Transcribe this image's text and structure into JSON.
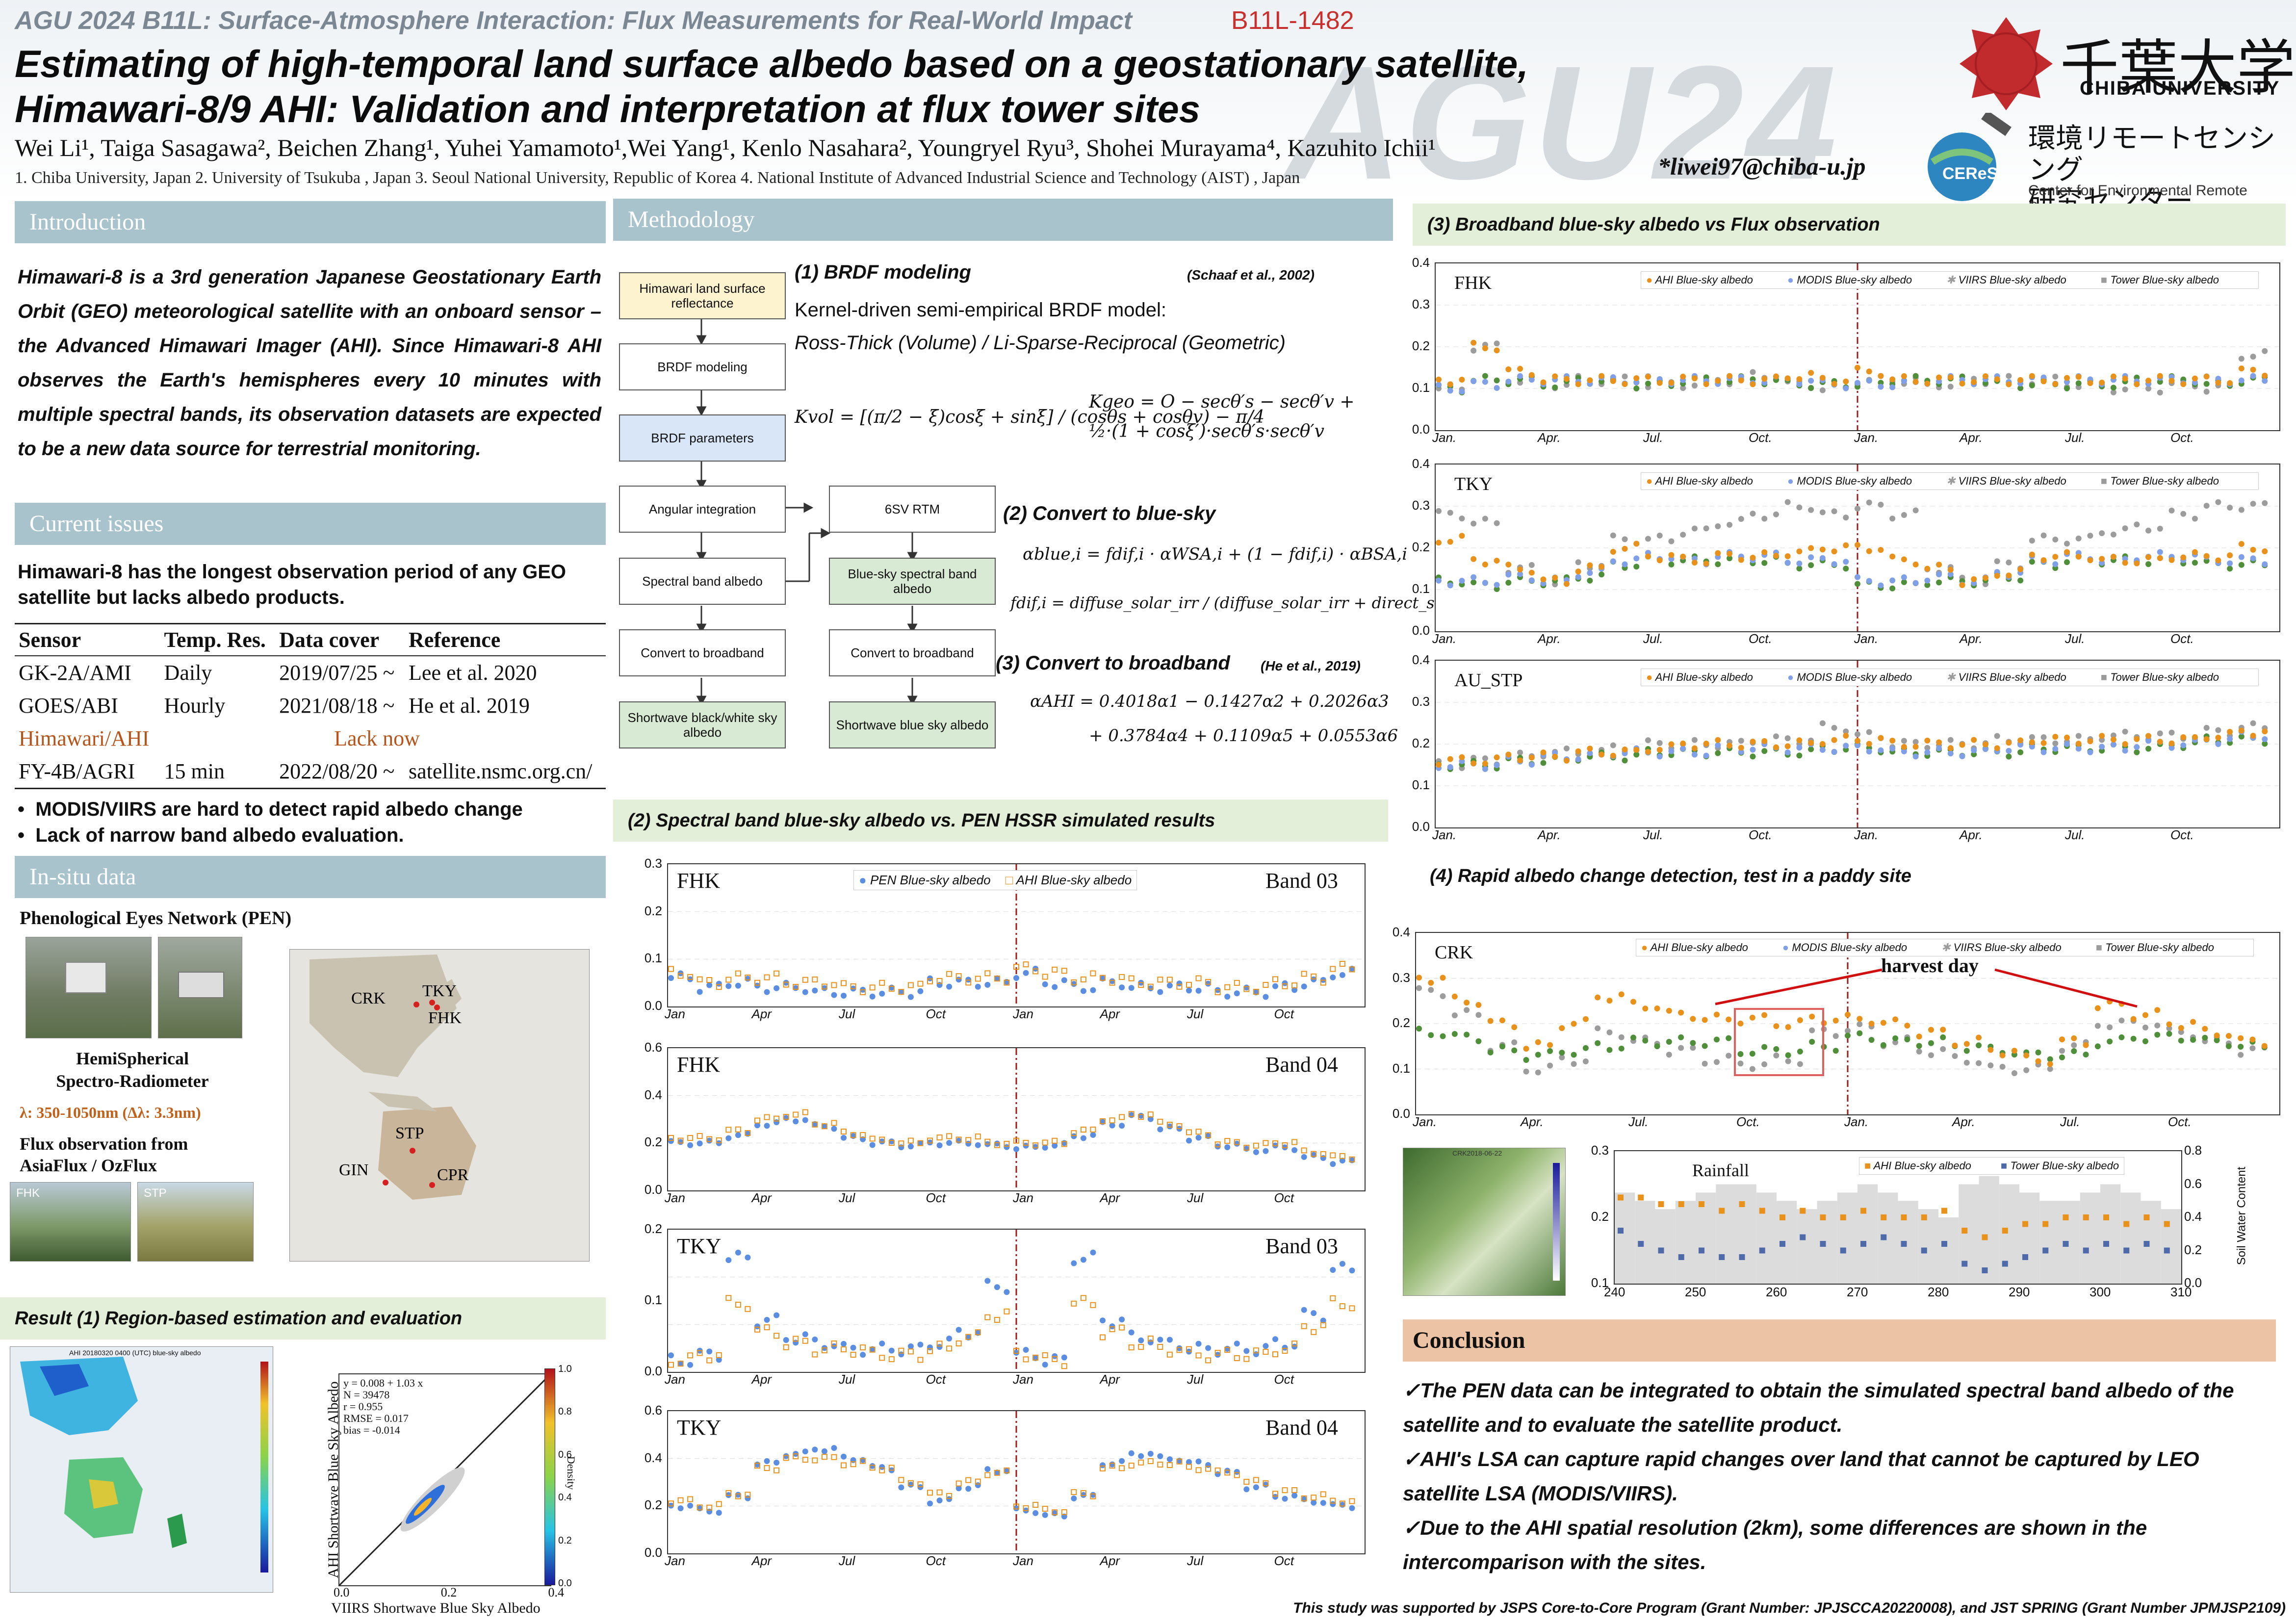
{
  "header": {
    "conference": "AGU 2024 B11L: Surface-Atmosphere Interaction: Flux Measurements for Real-World Impact",
    "poster_code": "B11L-1482",
    "watermark": "AGU24",
    "title_line1": "Estimating of high-temporal land surface albedo based on a geostationary satellite,",
    "title_line2": "Himawari-8/9 AHI: Validation and interpretation at flux tower sites",
    "authors": "Wei Li¹, Taiga Sasagawa², Beichen Zhang¹, Yuhei Yamamoto¹,Wei Yang¹, Kenlo Nasahara², Youngryel Ryu³, Shohei Murayama⁴, Kazuhito Ichii¹",
    "affiliations": "1. Chiba University, Japan  2. University of Tsukuba , Japan 3. Seoul National University, Republic of Korea 4. National Institute of Advanced Industrial Science and Technology (AIST) , Japan",
    "email": "*liwei97@chiba-u.jp",
    "logo_jp": "千葉大学",
    "logo_en": "CHIBA UNIVERSITY",
    "ceres_badge": "CEReS",
    "ceres_jp1": "環境リモートセンシング",
    "ceres_jp2": "研究センター",
    "ceres_en": "Center for Environmental Remote Sensing"
  },
  "intro": {
    "heading": "Introduction",
    "text": "Himawari-8 is a 3rd generation Japanese Geostationary Earth Orbit (GEO) meteorological satellite with an onboard sensor – the Advanced Himawari Imager (AHI). Since Himawari-8 AHI observes the Earth's hemispheres every 10 minutes with multiple spectral bands, its observation datasets are expected to be a new data source for terrestrial monitoring."
  },
  "issues": {
    "heading": "Current issues",
    "text": "Himawari-8 has the longest observation period of any GEO satellite but lacks albedo products.",
    "table_headers": [
      "Sensor",
      "Temp. Res.",
      "Data cover",
      "Reference"
    ],
    "rows": [
      [
        "GK-2A/AMI",
        "Daily",
        "2019/07/25 ~",
        "Lee et al. 2020"
      ],
      [
        "GOES/ABI",
        "Hourly",
        "2021/08/18 ~",
        "He et al. 2019"
      ],
      [
        "FY-4B/AGRI",
        "15 min",
        "2022/08/20 ~",
        "satellite.nsmc.org.cn/"
      ]
    ],
    "himawari_sensor": "Himawari/AHI",
    "himawari_note": "Lack now",
    "bullet1": "MODIS/VIIRS are hard to detect rapid albedo change",
    "bullet2": "Lack of narrow band albedo evaluation."
  },
  "insitu": {
    "heading": "In-situ data",
    "pen_title": "Phenological Eyes Network (PEN)",
    "hssr1": "HemiSpherical",
    "hssr2": "Spectro-Radiometer",
    "lambda": "λ: 350-1050nm (Δλ: 3.3nm)",
    "flux1": "Flux observation from",
    "flux2": "AsiaFlux / OzFlux",
    "photo_fhk": "FHK",
    "photo_stp": "STP",
    "sites": [
      "CRK",
      "TKY",
      "FHK",
      "STP",
      "GIN",
      "CPR"
    ]
  },
  "result1": {
    "heading": "Result (1) Region-based estimation and evaluation",
    "map_title": "AHI 20180320 0400 (UTC) blue-sky albedo",
    "stats": [
      "y = 0.008 + 1.03 x",
      "N = 39478",
      "r = 0.955",
      "RMSE = 0.017",
      "bias = -0.014"
    ],
    "xlabel": "VIIRS Shortwave Blue Sky Albedo",
    "ylabel": "AHI Shortwave Blue Sky Albedo",
    "density": "Density",
    "xticks": [
      "0.0",
      "0.2",
      "0.4"
    ],
    "cb_ticks": [
      "1.0",
      "0.8",
      "0.6",
      "0.4",
      "0.2",
      "0.0"
    ]
  },
  "method": {
    "heading": "Methodology",
    "flow_left": [
      "Himawari land surface reflectance",
      "BRDF modeling",
      "BRDF parameters",
      "Angular integration",
      "Spectral band albedo",
      "Convert to broadband",
      "Shortwave black/white sky albedo"
    ],
    "flow_right": [
      "6SV RTM",
      "Blue-sky spectral band albedo",
      "Convert to broadband",
      "Shortwave blue sky albedo"
    ],
    "s1_title": "(1) BRDF modeling",
    "s1_ref": "(Schaaf et al., 2002)",
    "s1_line1": "Kernel-driven semi-empirical BRDF model:",
    "s1_line2": "Ross-Thick (Volume)  / Li-Sparse-Reciprocal (Geometric)",
    "kvol": "Kvol = [(π/2 − ξ)cosξ + sinξ] / (cosθs + cosθv) − π/4",
    "kgeo": "Kgeo = O − secθ′s − secθ′v + ½·(1 + cosξ′)·secθ′s·secθ′v",
    "s2_title": "(2) Convert to blue-sky",
    "eq_blue": "αblue,i = fdif,i · αWSA,i + (1 − fdif,i) · αBSA,i",
    "eq_fdif": "fdif,i = diffuse_solar_irr / (diffuse_solar_irr + direct_solar_irr)",
    "s3_title": "(3) Convert to broadband",
    "s3_ref": "(He et al., 2019)",
    "eq_ahi1": "αAHI = 0.4018α1 − 0.1427α2 + 0.2026α3",
    "eq_ahi2": "+ 0.3784α4 + 0.1109α5 + 0.0553α6"
  },
  "spectral": {
    "heading": "(2) Spectral band blue-sky albedo vs. PEN HSSR simulated results",
    "legend": [
      "PEN Blue-sky albedo",
      "AHI Blue-sky albedo"
    ],
    "months": [
      "Jan",
      "Apr",
      "Jul",
      "Oct",
      "Jan",
      "Apr",
      "Jul",
      "Oct"
    ],
    "panels": [
      {
        "site": "FHK",
        "band": "Band 03",
        "yticks": [
          "0.3",
          "0.2",
          "0.1",
          "0.0"
        ],
        "ymax": 0.3,
        "ahi": [
          0.07,
          0.05,
          0.06,
          0.06,
          0.05,
          0.05,
          0.04,
          0.04,
          0.04,
          0.06,
          0.06,
          0.06,
          0.08,
          0.07,
          0.06,
          0.06,
          0.05,
          0.05,
          0.05,
          0.04,
          0.04,
          0.05,
          0.06,
          0.08
        ],
        "pen": [
          0.06,
          0.04,
          0.05,
          0.04,
          0.04,
          0.03,
          0.03,
          0.03,
          0.03,
          0.05,
          0.05,
          0.05,
          0.07,
          0.05,
          0.04,
          0.05,
          0.04,
          0.04,
          0.04,
          0.03,
          0.03,
          0.04,
          0.05,
          0.07
        ]
      },
      {
        "site": "FHK",
        "band": "Band 04",
        "yticks": [
          "0.6",
          "0.4",
          "0.2",
          "0.0"
        ],
        "ymax": 0.6,
        "ahi": [
          0.22,
          0.22,
          0.25,
          0.3,
          0.32,
          0.28,
          0.24,
          0.21,
          0.2,
          0.22,
          0.22,
          0.2,
          0.2,
          0.2,
          0.25,
          0.3,
          0.32,
          0.28,
          0.24,
          0.2,
          0.19,
          0.2,
          0.16,
          0.14
        ],
        "pen": [
          0.2,
          0.2,
          0.23,
          0.28,
          0.3,
          0.27,
          0.22,
          0.2,
          0.19,
          0.2,
          0.2,
          0.19,
          0.18,
          0.19,
          0.23,
          0.28,
          0.31,
          0.26,
          0.22,
          0.19,
          0.17,
          0.18,
          0.14,
          0.12
        ]
      },
      {
        "site": "TKY",
        "band": "Band 03",
        "yticks": [
          "0.2",
          "0.1",
          "0.0"
        ],
        "ymax": 0.25,
        "ahi": [
          0.02,
          0.03,
          0.12,
          0.07,
          0.05,
          0.04,
          0.04,
          0.03,
          0.03,
          0.04,
          0.06,
          0.1,
          0.03,
          0.02,
          0.12,
          0.07,
          0.05,
          0.04,
          0.03,
          0.03,
          0.03,
          0.04,
          0.08,
          0.12
        ],
        "pen": [
          0.02,
          0.03,
          0.2,
          0.09,
          0.06,
          0.05,
          0.04,
          0.04,
          0.04,
          0.05,
          0.07,
          0.15,
          0.03,
          0.02,
          0.2,
          0.09,
          0.06,
          0.05,
          0.04,
          0.04,
          0.04,
          0.05,
          0.1,
          0.18
        ]
      },
      {
        "site": "TKY",
        "band": "Band 04",
        "yticks": [
          "0.6",
          "0.4",
          "0.2",
          "0.0"
        ],
        "ymax": 0.6,
        "ahi": [
          0.22,
          0.2,
          0.25,
          0.36,
          0.4,
          0.4,
          0.38,
          0.36,
          0.3,
          0.25,
          0.3,
          0.34,
          0.2,
          0.18,
          0.25,
          0.36,
          0.38,
          0.38,
          0.36,
          0.34,
          0.3,
          0.26,
          0.24,
          0.22
        ],
        "pen": [
          0.2,
          0.18,
          0.24,
          0.38,
          0.42,
          0.44,
          0.4,
          0.36,
          0.28,
          0.22,
          0.28,
          0.35,
          0.18,
          0.16,
          0.24,
          0.38,
          0.42,
          0.4,
          0.38,
          0.34,
          0.28,
          0.24,
          0.22,
          0.2
        ]
      }
    ]
  },
  "broadband": {
    "heading": "(3) Broadband blue-sky albedo vs Flux observation",
    "legend": [
      "AHI Blue-sky albedo",
      "MODIS Blue-sky albedo",
      "VIIRS Blue-sky albedo",
      "Tower Blue-sky albedo"
    ],
    "months": [
      "Jan.",
      "Apr.",
      "Jul.",
      "Oct.",
      "Jan.",
      "Apr.",
      "Jul.",
      "Oct."
    ],
    "yticks": [
      "0.4",
      "0.3",
      "0.2",
      "0.1",
      "0.0"
    ],
    "panels": [
      {
        "site": "FHK",
        "ahi": [
          0.12,
          0.2,
          0.14,
          0.12,
          0.12,
          0.12,
          0.12,
          0.12,
          0.12,
          0.12,
          0.13,
          0.12,
          0.14,
          0.12,
          0.12,
          0.12,
          0.12,
          0.12,
          0.12,
          0.12,
          0.12,
          0.12,
          0.12,
          0.14
        ],
        "tower": [
          0.1,
          0.2,
          0.12,
          0.11,
          0.12,
          0.12,
          0.11,
          0.11,
          0.12,
          0.13,
          0.11,
          0.1,
          0.12,
          0.12,
          0.11,
          0.12,
          0.12,
          0.12,
          0.11,
          0.1,
          0.1,
          0.11,
          0.1,
          0.18
        ],
        "modis": [
          0.1,
          0.11,
          0.12,
          0.12,
          0.12,
          0.12,
          0.12,
          0.12,
          0.12,
          0.12,
          0.12,
          0.11,
          0.11,
          0.11,
          0.12,
          0.12,
          0.12,
          0.12,
          0.12,
          0.12,
          0.12,
          0.12,
          0.12,
          0.12
        ],
        "viirs": [
          0.1,
          0.12,
          0.12,
          0.11,
          0.12,
          0.11,
          0.11,
          0.12,
          0.12,
          0.12,
          0.11,
          0.11,
          0.11,
          0.12,
          0.12,
          0.12,
          0.11,
          0.11,
          0.11,
          0.11,
          0.12,
          0.12,
          0.11,
          0.12
        ]
      },
      {
        "site": "TKY",
        "ahi": [
          0.22,
          0.17,
          0.15,
          0.12,
          0.15,
          0.2,
          0.18,
          0.17,
          0.18,
          0.18,
          0.19,
          0.2,
          0.2,
          0.17,
          0.15,
          0.12,
          0.14,
          0.18,
          0.18,
          0.17,
          0.17,
          0.18,
          0.18,
          0.2
        ],
        "tower": [
          0.28,
          0.26,
          0.15,
          0.12,
          0.16,
          0.22,
          0.22,
          0.24,
          0.26,
          0.28,
          0.3,
          0.28,
          0.3,
          0.28,
          0.15,
          0.12,
          0.16,
          0.22,
          0.22,
          0.24,
          0.25,
          0.28,
          0.3,
          0.3
        ],
        "modis": [
          0.12,
          0.12,
          0.13,
          0.12,
          0.14,
          0.17,
          0.18,
          0.17,
          0.18,
          0.18,
          0.17,
          0.17,
          0.12,
          0.12,
          0.13,
          0.12,
          0.14,
          0.17,
          0.18,
          0.17,
          0.18,
          0.18,
          0.17,
          0.17
        ],
        "viirs": [
          0.12,
          0.11,
          0.12,
          0.12,
          0.13,
          0.16,
          0.17,
          0.17,
          0.17,
          0.17,
          0.16,
          0.16,
          0.11,
          0.11,
          0.12,
          0.12,
          0.13,
          0.16,
          0.17,
          0.17,
          0.17,
          0.17,
          0.16,
          0.16
        ]
      },
      {
        "site": "AU_STP",
        "ahi": [
          0.16,
          0.16,
          0.17,
          0.17,
          0.18,
          0.18,
          0.19,
          0.2,
          0.2,
          0.2,
          0.2,
          0.21,
          0.21,
          0.2,
          0.2,
          0.2,
          0.2,
          0.21,
          0.21,
          0.21,
          0.21,
          0.21,
          0.22,
          0.23
        ],
        "tower": [
          0.15,
          0.16,
          0.17,
          0.18,
          0.18,
          0.19,
          0.2,
          0.2,
          0.2,
          0.21,
          0.21,
          0.24,
          0.22,
          0.2,
          0.2,
          0.2,
          0.21,
          0.21,
          0.21,
          0.22,
          0.22,
          0.22,
          0.23,
          0.24
        ],
        "modis": [
          0.15,
          0.15,
          0.16,
          0.17,
          0.17,
          0.18,
          0.18,
          0.18,
          0.19,
          0.19,
          0.19,
          0.19,
          0.19,
          0.18,
          0.18,
          0.18,
          0.19,
          0.19,
          0.19,
          0.19,
          0.2,
          0.2,
          0.21,
          0.22
        ],
        "viirs": [
          0.15,
          0.15,
          0.16,
          0.16,
          0.17,
          0.17,
          0.18,
          0.18,
          0.18,
          0.18,
          0.18,
          0.19,
          0.19,
          0.18,
          0.18,
          0.18,
          0.18,
          0.19,
          0.19,
          0.19,
          0.19,
          0.2,
          0.21,
          0.21
        ]
      }
    ]
  },
  "rapid": {
    "heading": "(4) Rapid albedo change detection, test in a paddy site",
    "site": "CRK",
    "harvest": "harvest day",
    "legend": [
      "AHI Blue-sky albedo",
      "MODIS Blue-sky albedo",
      "VIIRS Blue-sky albedo",
      "Tower Blue-sky albedo"
    ],
    "months": [
      "Jan.",
      "Apr.",
      "Jul.",
      "Oct.",
      "Jan.",
      "Apr.",
      "Jul.",
      "Oct."
    ],
    "yticks": [
      "0.4",
      "0.3",
      "0.2",
      "0.1",
      "0.0"
    ],
    "ahi": [
      0.3,
      0.25,
      0.2,
      0.15,
      0.2,
      0.26,
      0.24,
      0.22,
      0.21,
      0.21,
      0.2,
      0.21,
      0.21,
      0.2,
      0.18,
      0.16,
      0.14,
      0.12,
      0.16,
      0.24,
      0.22,
      0.2,
      0.18,
      0.16
    ],
    "modis": [
      0.18,
      0.17,
      0.14,
      0.13,
      0.14,
      0.15,
      0.16,
      0.16,
      0.16,
      0.14,
      0.14,
      0.15,
      0.17,
      0.16,
      0.16,
      0.15,
      0.14,
      0.13,
      0.13,
      0.16,
      0.17,
      0.17,
      0.16,
      0.15
    ],
    "tower": [
      0.27,
      0.22,
      0.15,
      0.1,
      0.12,
      0.18,
      0.16,
      0.14,
      0.12,
      0.11,
      0.12,
      0.18,
      0.19,
      0.16,
      0.14,
      0.12,
      0.1,
      0.1,
      0.15,
      0.2,
      0.2,
      0.18,
      0.16,
      0.14
    ],
    "zoom": {
      "map_label": "CRK2018-06-22",
      "rainfall": "Rainfall",
      "legend": [
        "AHI Blue-sky albedo",
        "Tower Blue-sky albedo"
      ],
      "xticks": [
        "240",
        "250",
        "260",
        "270",
        "280",
        "290",
        "300",
        "310"
      ],
      "yticks": [
        "0.3",
        "0.2",
        "0.1"
      ],
      "y2ticks": [
        "0.8",
        "0.6",
        "0.4",
        "0.2",
        "0.0"
      ],
      "y2label": "Soil Water Content",
      "ahi": [
        0.23,
        0.23,
        0.22,
        0.22,
        0.22,
        0.21,
        0.22,
        0.21,
        0.2,
        0.21,
        0.2,
        0.2,
        0.21,
        0.2,
        0.2,
        0.2,
        0.21,
        0.18,
        0.17,
        0.18,
        0.19,
        0.19,
        0.2,
        0.2,
        0.2,
        0.19,
        0.2,
        0.19
      ],
      "tower": [
        0.18,
        0.16,
        0.15,
        0.14,
        0.15,
        0.14,
        0.14,
        0.15,
        0.16,
        0.17,
        0.16,
        0.15,
        0.16,
        0.17,
        0.16,
        0.15,
        0.16,
        0.13,
        0.12,
        0.13,
        0.14,
        0.15,
        0.16,
        0.15,
        0.16,
        0.15,
        0.16,
        0.15
      ],
      "swc": [
        0.55,
        0.5,
        0.45,
        0.5,
        0.55,
        0.6,
        0.6,
        0.55,
        0.5,
        0.45,
        0.5,
        0.55,
        0.6,
        0.55,
        0.5,
        0.45,
        0.4,
        0.6,
        0.65,
        0.6,
        0.55,
        0.5,
        0.5,
        0.55,
        0.6,
        0.55,
        0.5,
        0.45
      ]
    }
  },
  "conclusion": {
    "heading": "Conclusion",
    "items": [
      "The PEN data can be integrated to obtain the simulated spectral band albedo of the satellite and to evaluate the satellite product.",
      "AHI's LSA can capture rapid changes over land that cannot be captured by LEO satellite LSA (MODIS/VIIRS).",
      "Due to the AHI spatial resolution (2km), some differences are shown in the intercomparison with the sites."
    ],
    "ack": "This study was supported by JSPS Core-to-Core Program (Grant Number: JPJSCCA20220008), and JST SPRING (Grant Number JPMJSP2109)"
  },
  "colors": {
    "ahi": "#e8921c",
    "pen": "#5b8de0",
    "modis": "#7fa0e6",
    "viirs": "#9c9c9c",
    "tower": "#9c9c9c",
    "green": "#4f8f3a",
    "dash": "#9b1c1c"
  }
}
